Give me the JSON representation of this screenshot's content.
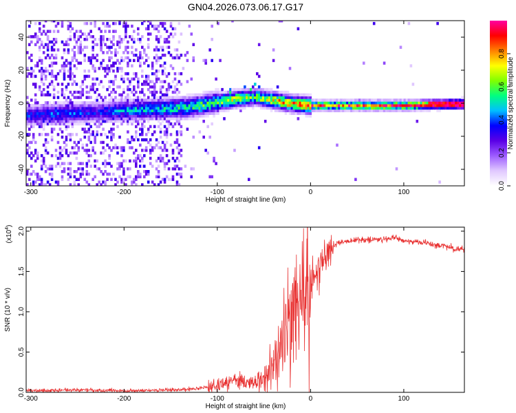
{
  "title": "GN04.2026.073.06.17.G17",
  "chart_data": [
    {
      "type": "heatmap",
      "xlabel": "Height of straight line (km)",
      "ylabel": "Frequency (Hz)",
      "xlim": [
        -305,
        165
      ],
      "ylim": [
        -50,
        50
      ],
      "xticks": [
        -300,
        -200,
        -100,
        0,
        100
      ],
      "yticks": [
        -40,
        -20,
        0,
        20,
        40
      ],
      "xtick_labels": [
        "-300",
        "-200",
        "-100",
        "0",
        "100"
      ],
      "ytick_labels": [
        "-40",
        "-20",
        "0",
        "20",
        "40"
      ],
      "colorbar": {
        "label": "Normalized spectral amplitude",
        "range": [
          0,
          1
        ],
        "ticks": [
          0.0,
          0.2,
          0.4,
          0.6,
          0.8
        ],
        "tick_labels": [
          "0.0",
          "0.2",
          "0.4",
          "0.6",
          "0.8"
        ],
        "colors": [
          "#ffffff",
          "#e0c8ff",
          "#9d5cff",
          "#5a00e6",
          "#0000ff",
          "#00bfff",
          "#00ff80",
          "#80ff00",
          "#ffff00",
          "#ff8000",
          "#ff0000",
          "#ff00a0"
        ]
      },
      "ridge": {
        "description_x": [
          -305,
          -270,
          -230,
          -200,
          -160,
          -130,
          -100,
          -80,
          -60,
          -40,
          -20,
          0,
          50,
          100,
          165
        ],
        "description_freq": [
          -8,
          -7,
          -6,
          -5,
          -4,
          -3,
          0,
          2,
          3,
          1,
          -1,
          -2,
          -2,
          -2,
          -1
        ],
        "peak_amplitude": [
          0.35,
          0.4,
          0.35,
          0.45,
          0.5,
          0.55,
          0.6,
          0.7,
          0.6,
          0.75,
          0.8,
          0.85,
          0.9,
          0.95,
          1.0
        ]
      }
    },
    {
      "type": "line",
      "xlabel": "Height of straight line (km)",
      "ylabel": "SNR (10 * v/v)",
      "scale_label": "(x10",
      "scale_exponent": "4",
      "scale_close": ")",
      "xlim": [
        -305,
        165
      ],
      "ylim": [
        0,
        2.05
      ],
      "xticks": [
        -300,
        -200,
        -100,
        0,
        100
      ],
      "yticks": [
        0.0,
        0.5,
        1.0,
        1.5,
        2.0
      ],
      "xtick_labels": [
        "-300",
        "-200",
        "-100",
        "0",
        "100"
      ],
      "ytick_labels": [
        "0.0",
        "0.5",
        "1.0",
        "1.5",
        "2.0"
      ],
      "series": [
        {
          "name": "SNR",
          "color": "#e83030",
          "x": [
            -305,
            -250,
            -200,
            -150,
            -120,
            -100,
            -90,
            -80,
            -70,
            -60,
            -50,
            -40,
            -30,
            -20,
            -10,
            0,
            10,
            20,
            30,
            40,
            60,
            80,
            90,
            100,
            120,
            140,
            165
          ],
          "y": [
            0.02,
            0.03,
            0.02,
            0.03,
            0.05,
            0.08,
            0.12,
            0.15,
            0.12,
            0.1,
            0.15,
            0.35,
            0.6,
            0.9,
            1.1,
            1.3,
            1.55,
            1.75,
            1.85,
            1.88,
            1.9,
            1.9,
            1.92,
            1.88,
            1.86,
            1.82,
            1.77
          ]
        }
      ]
    }
  ]
}
